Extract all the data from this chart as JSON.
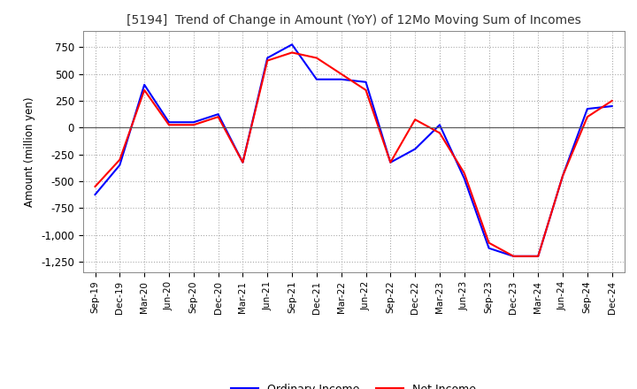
{
  "title": "[5194]  Trend of Change in Amount (YoY) of 12Mo Moving Sum of Incomes",
  "ylabel": "Amount (million yen)",
  "ylim": [
    -1350,
    900
  ],
  "yticks": [
    750,
    500,
    250,
    0,
    -250,
    -500,
    -750,
    -1000,
    -1250
  ],
  "background_color": "#ffffff",
  "grid_color": "#aaaaaa",
  "ordinary_income_color": "#0000ff",
  "net_income_color": "#ff0000",
  "x_labels": [
    "Sep-19",
    "Dec-19",
    "Mar-20",
    "Jun-20",
    "Sep-20",
    "Dec-20",
    "Mar-21",
    "Jun-21",
    "Sep-21",
    "Dec-21",
    "Mar-22",
    "Jun-22",
    "Sep-22",
    "Dec-22",
    "Mar-23",
    "Jun-23",
    "Sep-23",
    "Dec-23",
    "Mar-24",
    "Jun-24",
    "Sep-24",
    "Dec-24"
  ],
  "ordinary_income": [
    -625,
    -350,
    400,
    50,
    50,
    125,
    -325,
    650,
    775,
    450,
    450,
    425,
    -325,
    -200,
    25,
    -475,
    -1125,
    -1200,
    -1200,
    -450,
    175,
    200
  ],
  "net_income": [
    -550,
    -300,
    350,
    25,
    25,
    100,
    -325,
    625,
    700,
    650,
    500,
    350,
    -325,
    75,
    -50,
    -425,
    -1075,
    -1200,
    -1200,
    -450,
    100,
    250
  ],
  "legend_labels": [
    "Ordinary Income",
    "Net Income"
  ]
}
